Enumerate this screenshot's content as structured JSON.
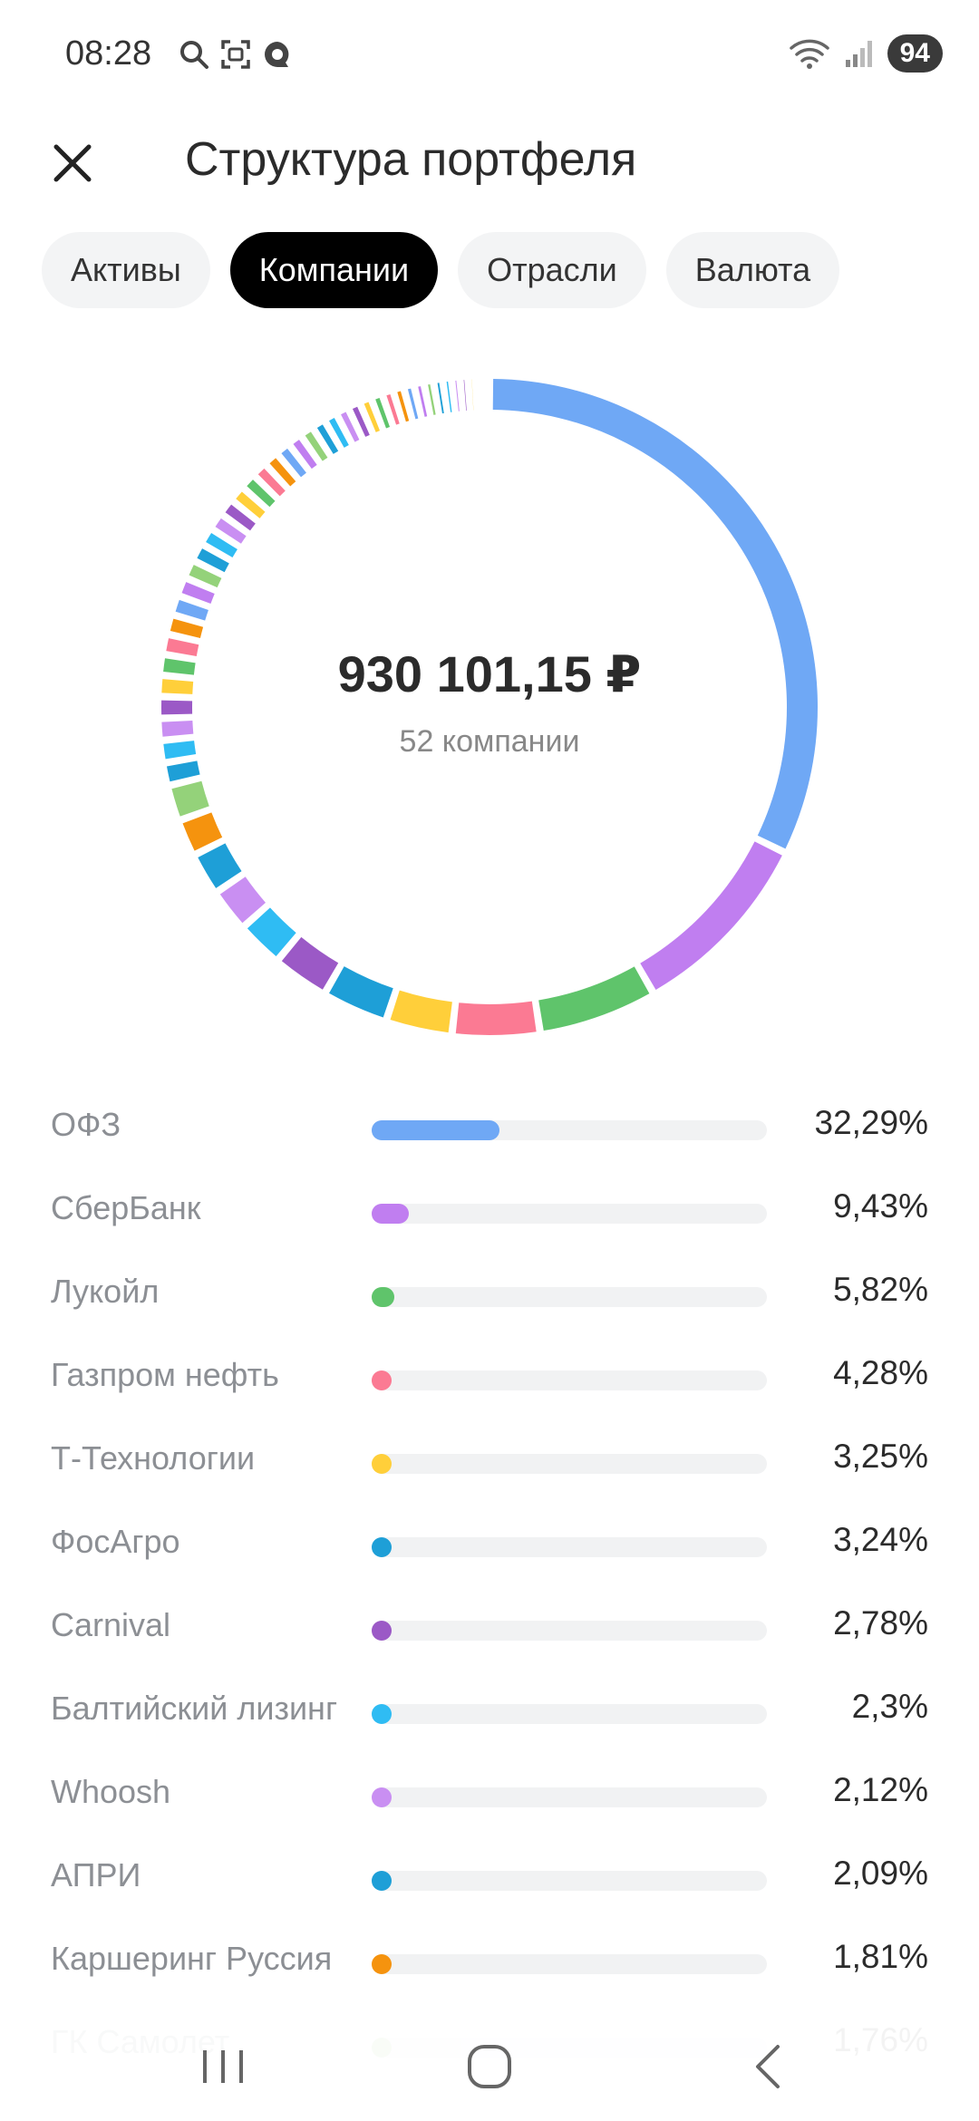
{
  "status_bar": {
    "time": "08:28",
    "battery": "94"
  },
  "header": {
    "title": "Структура портфеля"
  },
  "tabs": [
    {
      "label": "Активы",
      "active": false
    },
    {
      "label": "Компании",
      "active": true
    },
    {
      "label": "Отрасли",
      "active": false
    },
    {
      "label": "Валюта",
      "active": false
    }
  ],
  "summary": {
    "total": "930 101,15 ₽",
    "count_label": "52 компании"
  },
  "colors": {
    "blue": "#6fa8f5",
    "purple": "#c07ef0",
    "green": "#5fc46b",
    "pink": "#fb7a93",
    "yellow": "#ffcf3a",
    "teal": "#1e9fd7",
    "violet": "#9b59c6",
    "sky": "#2fbcf3",
    "lilac": "#c98ff2",
    "orange": "#f5930e",
    "lightgreen": "#94d27a"
  },
  "holdings": [
    {
      "name": "ОФЗ",
      "pct_label": "32,29%",
      "pct": 32.29,
      "color": "#6fa8f5"
    },
    {
      "name": "СберБанк",
      "pct_label": "9,43%",
      "pct": 9.43,
      "color": "#c07ef0"
    },
    {
      "name": "Лукойл",
      "pct_label": "5,82%",
      "pct": 5.82,
      "color": "#5fc46b"
    },
    {
      "name": "Газпром нефть",
      "pct_label": "4,28%",
      "pct": 4.28,
      "color": "#fb7a93"
    },
    {
      "name": "Т-Технологии",
      "pct_label": "3,25%",
      "pct": 3.25,
      "color": "#ffcf3a"
    },
    {
      "name": "ФосАгро",
      "pct_label": "3,24%",
      "pct": 3.24,
      "color": "#1e9fd7"
    },
    {
      "name": "Carnival",
      "pct_label": "2,78%",
      "pct": 2.78,
      "color": "#9b59c6"
    },
    {
      "name": "Балтийский лизинг",
      "pct_label": "2,3%",
      "pct": 2.3,
      "color": "#2fbcf3"
    },
    {
      "name": "Whoosh",
      "pct_label": "2,12%",
      "pct": 2.12,
      "color": "#c98ff2"
    },
    {
      "name": "АПРИ",
      "pct_label": "2,09%",
      "pct": 2.09,
      "color": "#1e9fd7"
    },
    {
      "name": "Каршеринг Руссия",
      "pct_label": "1,81%",
      "pct": 1.81,
      "color": "#f5930e"
    },
    {
      "name": "ГК Самолет",
      "pct_label": "1,76%",
      "pct": 1.76,
      "color": "#94d27a"
    }
  ]
}
